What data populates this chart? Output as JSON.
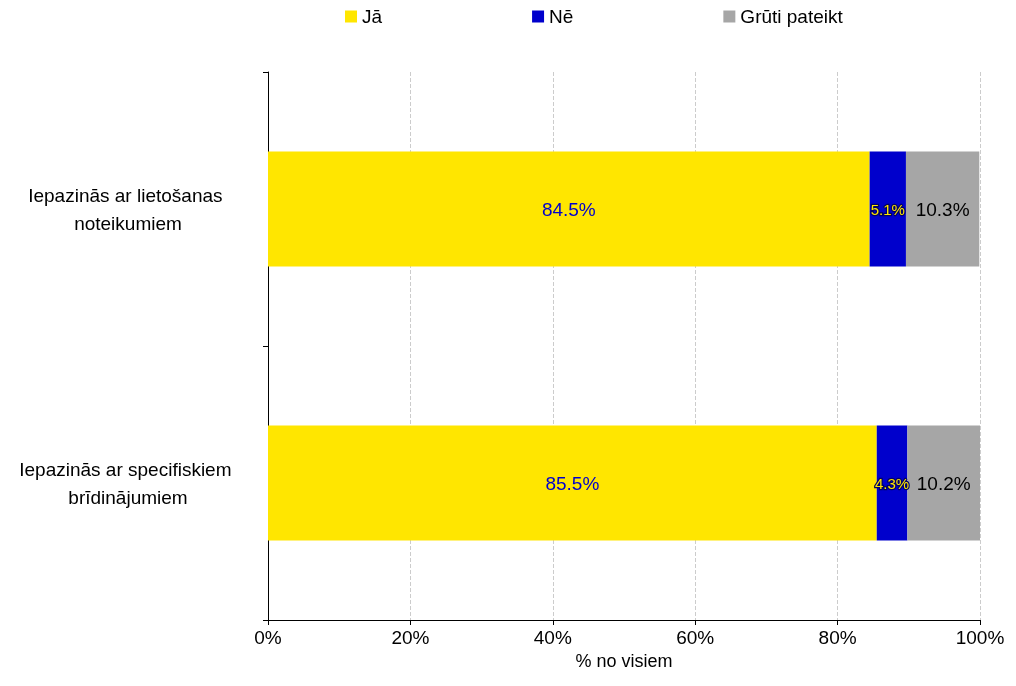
{
  "chart_data": {
    "type": "bar",
    "orientation": "horizontal",
    "stacked": true,
    "xlabel": "% no visiem",
    "categories": [
      "Iepazinās ar lietošanas noteikumiem",
      "Iepazinās ar specifiskiem brīdinājumiem"
    ],
    "series": [
      {
        "name": "Jā",
        "color": "#ffe600",
        "values": [
          84.5,
          85.5
        ],
        "value_labels": [
          "84.5%",
          "85.5%"
        ]
      },
      {
        "name": "Nē",
        "color": "#0000cc",
        "values": [
          5.1,
          4.3
        ],
        "value_labels": [
          "5.1%",
          "4.3%"
        ]
      },
      {
        "name": "Grūti pateikt",
        "color": "#a6a6a6",
        "values": [
          10.3,
          10.2
        ],
        "value_labels": [
          "10.3%",
          "10.2%"
        ]
      }
    ],
    "xlim": [
      0,
      100
    ],
    "xticks": [
      {
        "value": 0,
        "label": "0%"
      },
      {
        "value": 20,
        "label": "20%"
      },
      {
        "value": 40,
        "label": "40%"
      },
      {
        "value": 60,
        "label": "60%"
      },
      {
        "value": 80,
        "label": "80%"
      },
      {
        "value": 100,
        "label": "100%"
      }
    ],
    "grid": "x",
    "legend": "top"
  }
}
